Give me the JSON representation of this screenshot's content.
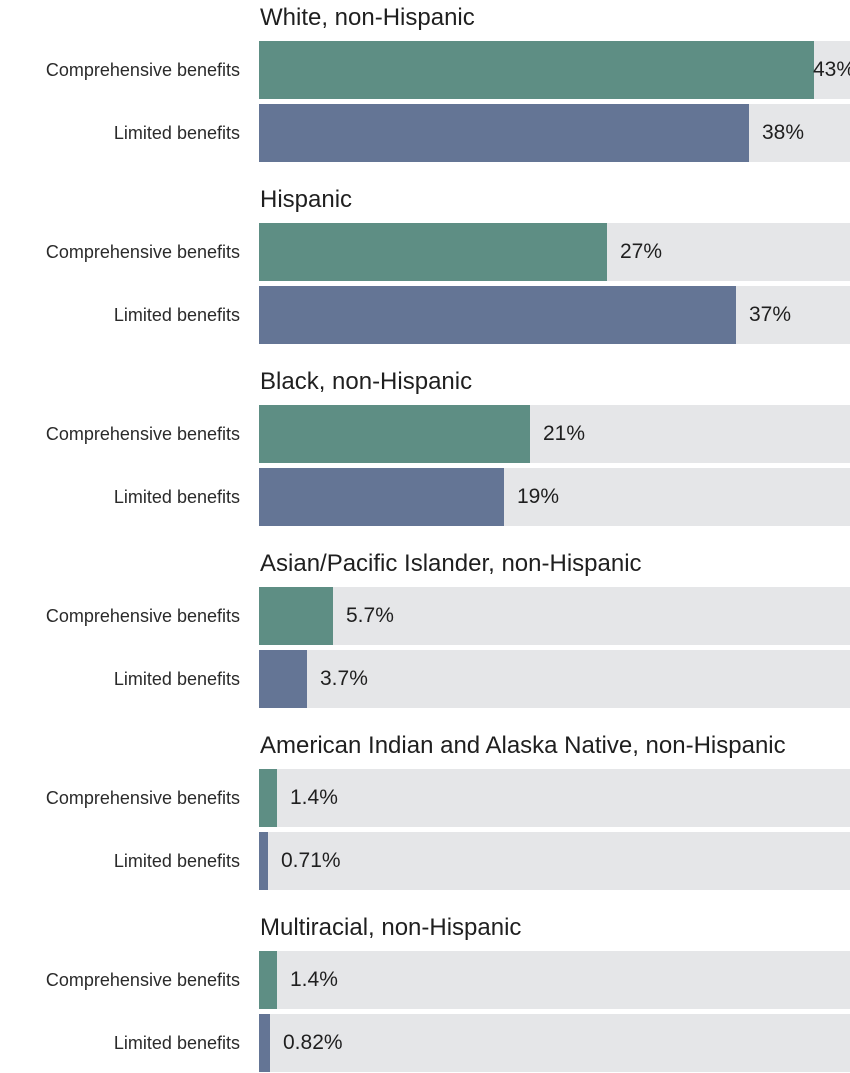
{
  "chart_data": {
    "type": "bar",
    "orientation": "horizontal",
    "xlim": [
      0,
      45.8
    ],
    "colors": {
      "Comprehensive benefits": "#5e8e84",
      "Limited benefits": "#647595",
      "track": "#e5e6e8"
    },
    "groups": [
      {
        "title": "White, non-Hispanic",
        "rows": [
          {
            "label": "Comprehensive benefits",
            "value": 43,
            "value_label": "43%"
          },
          {
            "label": "Limited benefits",
            "value": 38,
            "value_label": "38%"
          }
        ]
      },
      {
        "title": "Hispanic",
        "rows": [
          {
            "label": "Comprehensive benefits",
            "value": 27,
            "value_label": "27%"
          },
          {
            "label": "Limited benefits",
            "value": 37,
            "value_label": "37%"
          }
        ]
      },
      {
        "title": "Black, non-Hispanic",
        "rows": [
          {
            "label": "Comprehensive benefits",
            "value": 21,
            "value_label": "21%"
          },
          {
            "label": "Limited benefits",
            "value": 19,
            "value_label": "19%"
          }
        ]
      },
      {
        "title": "Asian/Pacific Islander, non-Hispanic",
        "rows": [
          {
            "label": "Comprehensive benefits",
            "value": 5.7,
            "value_label": "5.7%"
          },
          {
            "label": "Limited benefits",
            "value": 3.7,
            "value_label": "3.7%"
          }
        ]
      },
      {
        "title": "American Indian and Alaska Native, non-Hispanic",
        "rows": [
          {
            "label": "Comprehensive benefits",
            "value": 1.4,
            "value_label": "1.4%"
          },
          {
            "label": "Limited benefits",
            "value": 0.71,
            "value_label": "0.71%"
          }
        ]
      },
      {
        "title": "Multiracial, non-Hispanic",
        "rows": [
          {
            "label": "Comprehensive benefits",
            "value": 1.4,
            "value_label": "1.4%"
          },
          {
            "label": "Limited benefits",
            "value": 0.82,
            "value_label": "0.82%"
          }
        ]
      }
    ]
  }
}
